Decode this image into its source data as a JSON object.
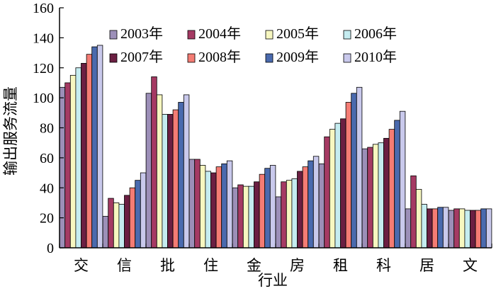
{
  "chart_data": {
    "type": "bar",
    "title": "",
    "xlabel": "行业",
    "ylabel": "输出服务流量",
    "ylim": [
      0,
      160
    ],
    "yticks": [
      0,
      20,
      40,
      60,
      80,
      100,
      120,
      140,
      160
    ],
    "grid": false,
    "legend_position": "top-center",
    "categories": [
      "交",
      "信",
      "批",
      "住",
      "金",
      "房",
      "租",
      "科",
      "居",
      "文"
    ],
    "series": [
      {
        "name": "2003年",
        "color": "#9c8fb8",
        "values": [
          107,
          21,
          103,
          59,
          40,
          34,
          56,
          66,
          26,
          25
        ]
      },
      {
        "name": "2004年",
        "color": "#a53a63",
        "values": [
          110,
          33,
          114,
          59,
          42,
          44,
          74,
          67,
          48,
          26
        ]
      },
      {
        "name": "2005年",
        "color": "#f7f7c0",
        "values": [
          115,
          30,
          102,
          55,
          41,
          45,
          79,
          69,
          39,
          26
        ]
      },
      {
        "name": "2006年",
        "color": "#c5ecf0",
        "values": [
          120,
          29,
          89,
          51,
          41,
          46,
          83,
          70,
          29,
          25
        ]
      },
      {
        "name": "2007年",
        "color": "#6b1f42",
        "values": [
          123,
          35,
          89,
          50,
          44,
          51,
          86,
          73,
          26,
          25
        ]
      },
      {
        "name": "2008年",
        "color": "#f47c74",
        "values": [
          129,
          40,
          92,
          54,
          49,
          54,
          97,
          79,
          26,
          25
        ]
      },
      {
        "name": "2009年",
        "color": "#4a6aae",
        "values": [
          134,
          45,
          97,
          56,
          53,
          58,
          103,
          85,
          27,
          26
        ]
      },
      {
        "name": "2010年",
        "color": "#c9c9ec",
        "values": [
          135,
          50,
          102,
          58,
          55,
          61,
          107,
          91,
          27,
          26
        ]
      }
    ]
  }
}
